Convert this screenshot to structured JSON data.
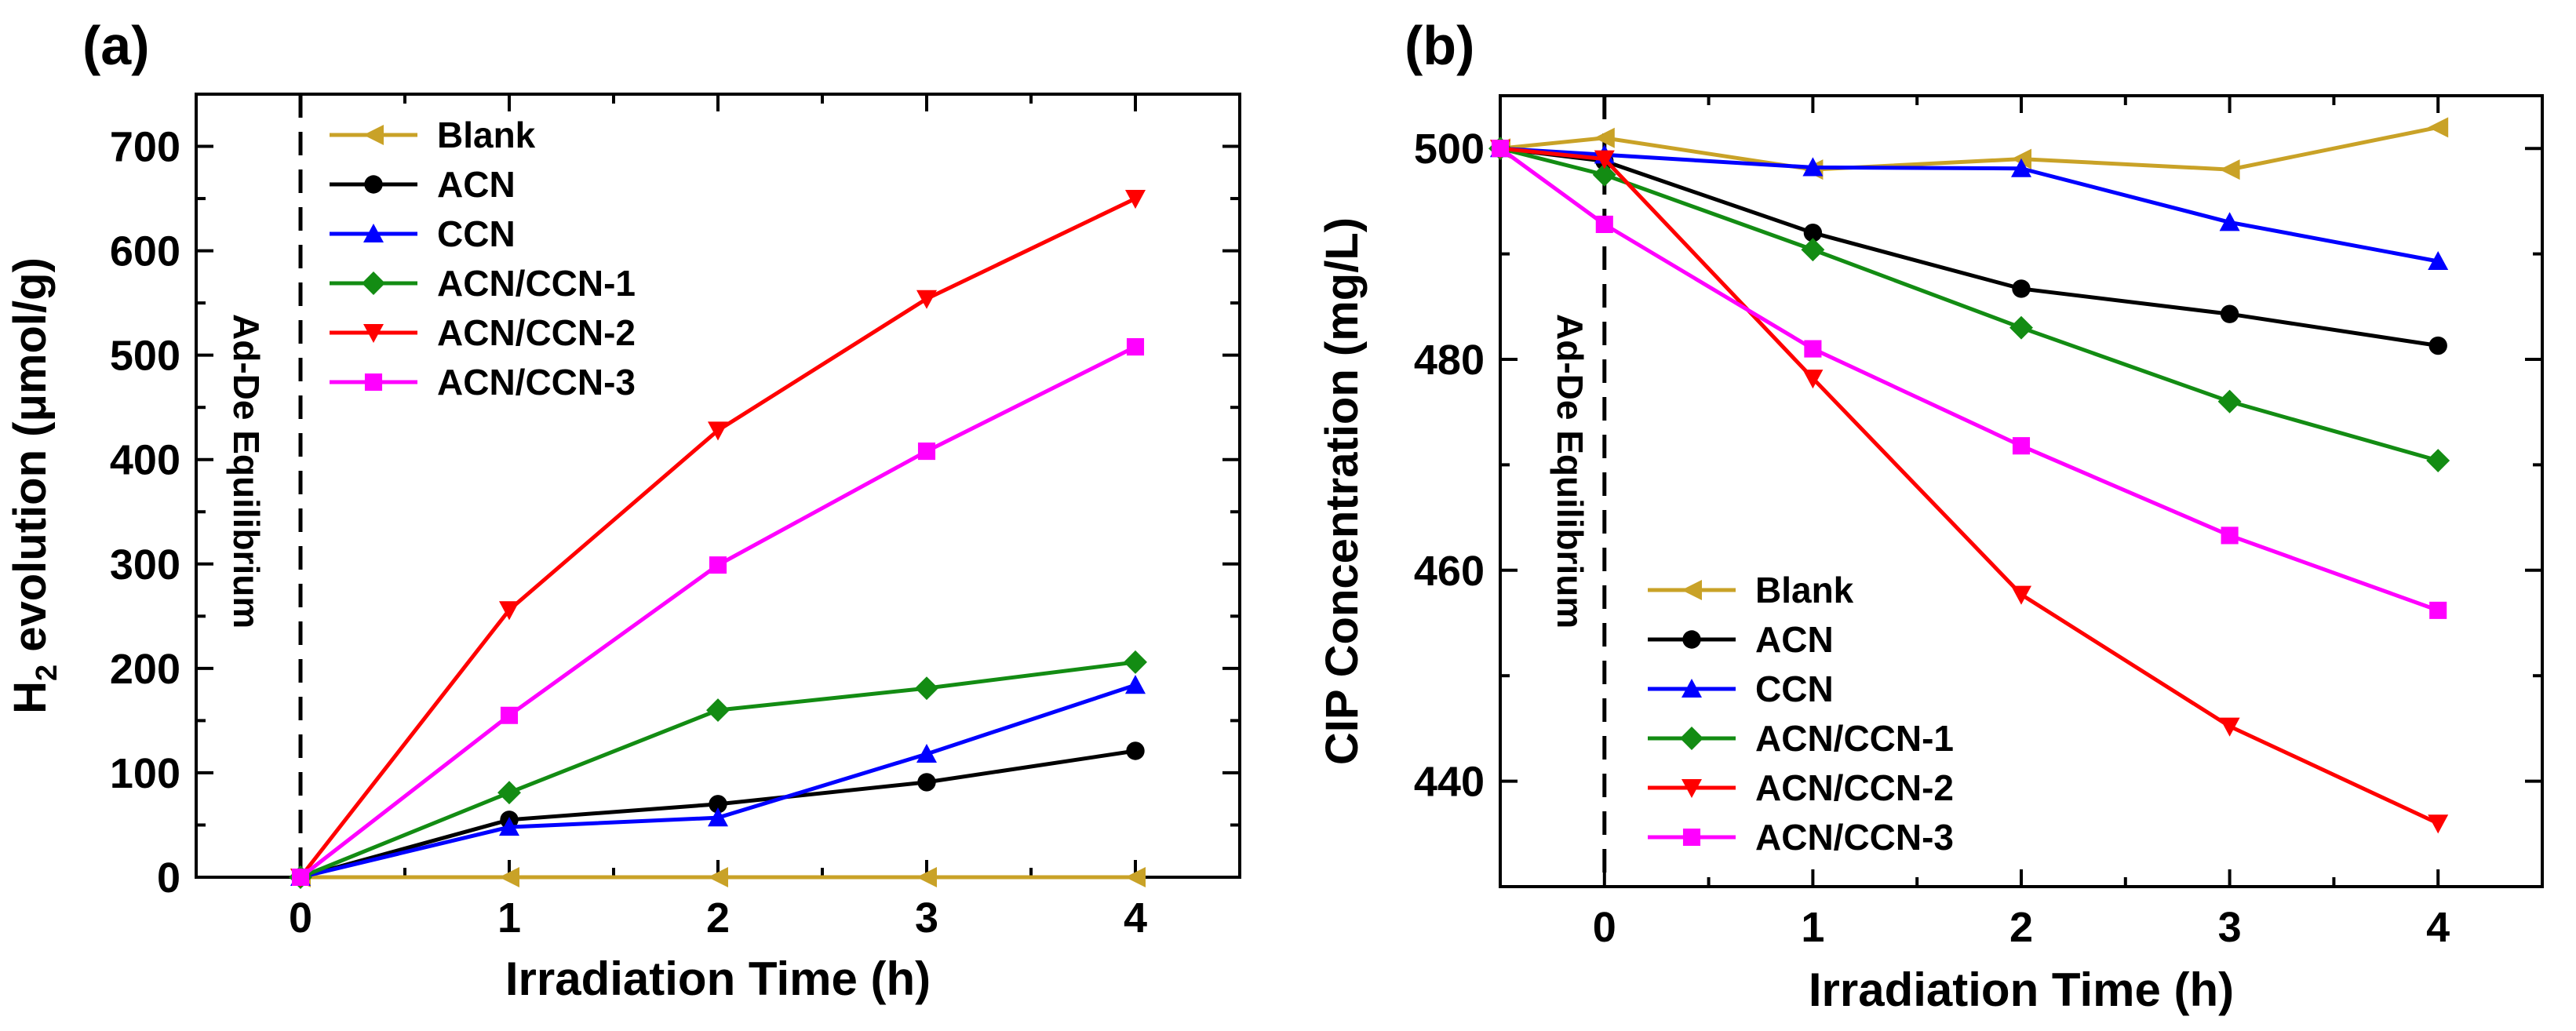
{
  "chart_data": [
    {
      "type": "line",
      "panel_label": "(a)",
      "title": "",
      "xlabel": "Irradiation Time (h)",
      "ylabel": {
        "main": "H",
        "sub": "2",
        "rest": " evolution (μmol/g)"
      },
      "xlim": [
        -0.5,
        4.5
      ],
      "ylim": [
        0,
        750
      ],
      "xticks": [
        0,
        1,
        2,
        3,
        4
      ],
      "yticks": [
        0,
        100,
        200,
        300,
        400,
        500,
        600,
        700
      ],
      "annotation": "Ad-De Equilibrium",
      "legend_position": "top-left",
      "x": [
        0,
        1,
        2,
        3,
        4
      ],
      "series": [
        {
          "name": "Blank",
          "color": "#C9A227",
          "marker": "triangle-left",
          "values": [
            0,
            0,
            0,
            0,
            0
          ]
        },
        {
          "name": "ACN",
          "color": "#000000",
          "marker": "circle",
          "values": [
            0,
            55,
            70,
            91,
            121
          ]
        },
        {
          "name": "CCN",
          "color": "#0000FF",
          "marker": "triangle-up",
          "values": [
            0,
            48,
            57,
            118,
            184
          ]
        },
        {
          "name": "ACN/CCN-1",
          "color": "#138C13",
          "marker": "diamond",
          "values": [
            0,
            81,
            160,
            181,
            206
          ]
        },
        {
          "name": "ACN/CCN-2",
          "color": "#FF0000",
          "marker": "triangle-down",
          "values": [
            0,
            256,
            428,
            554,
            650
          ]
        },
        {
          "name": "ACN/CCN-3",
          "color": "#FF00FF",
          "marker": "square",
          "values": [
            0,
            155,
            299,
            408,
            508
          ]
        }
      ]
    },
    {
      "type": "line",
      "panel_label": "(b)",
      "title": "",
      "xlabel": "Irradiation Time (h)",
      "ylabel": "CIP Concentration (mg/L)",
      "xlim": [
        -0.5,
        4.5
      ],
      "ylim": [
        430,
        505
      ],
      "xticks": [
        0,
        1,
        2,
        3,
        4
      ],
      "yticks": [
        440,
        460,
        480,
        500
      ],
      "annotation": "Ad-De Equilibrium",
      "legend_position": "bottom-left",
      "x": [
        -0.5,
        0,
        1,
        2,
        3,
        4
      ],
      "series": [
        {
          "name": "Blank",
          "color": "#C9A227",
          "marker": "triangle-left",
          "values": [
            500,
            501,
            498,
            499,
            498,
            502
          ]
        },
        {
          "name": "ACN",
          "color": "#000000",
          "marker": "circle",
          "values": [
            500,
            498.8,
            492,
            486.7,
            484.3,
            481.3
          ]
        },
        {
          "name": "CCN",
          "color": "#0000FF",
          "marker": "triangle-up",
          "values": [
            500,
            499.4,
            498.2,
            498.1,
            493,
            489.3
          ]
        },
        {
          "name": "ACN/CCN-1",
          "color": "#138C13",
          "marker": "diamond",
          "values": [
            500,
            497.5,
            490.4,
            483,
            476,
            470.4
          ]
        },
        {
          "name": "ACN/CCN-2",
          "color": "#FF0000",
          "marker": "triangle-down",
          "values": [
            500,
            499,
            478.2,
            457.7,
            445.2,
            436
          ]
        },
        {
          "name": "ACN/CCN-3",
          "color": "#FF00FF",
          "marker": "square",
          "values": [
            500,
            492.8,
            481,
            471.8,
            463.3,
            456.2
          ]
        }
      ]
    }
  ]
}
